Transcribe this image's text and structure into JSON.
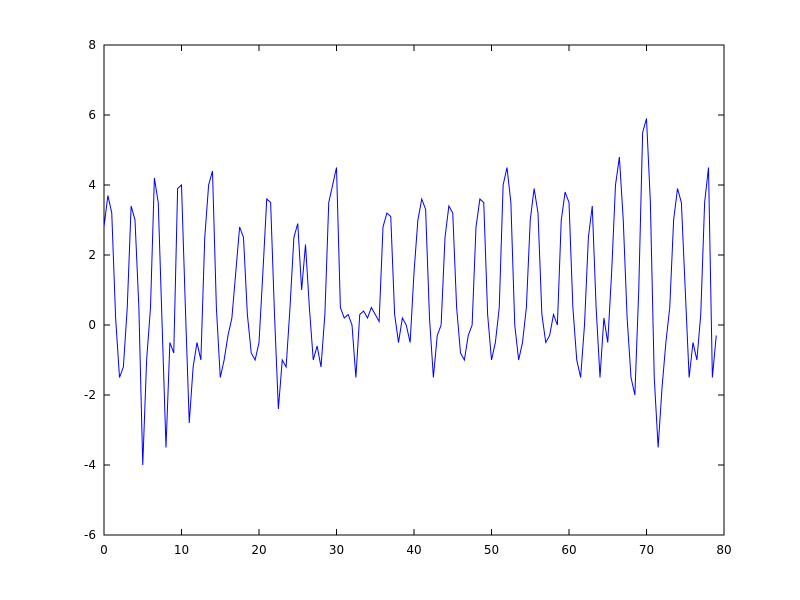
{
  "chart_data": {
    "type": "line",
    "color": "#0000ff",
    "x": [
      0,
      0.5,
      1,
      1.5,
      2,
      2.5,
      3,
      3.5,
      4,
      4.5,
      5,
      5.5,
      6,
      6.5,
      7,
      7.5,
      8,
      8.5,
      9,
      9.5,
      10,
      10.5,
      11,
      11.5,
      12,
      12.5,
      13,
      13.5,
      14,
      14.5,
      15,
      15.5,
      16,
      16.5,
      17,
      17.5,
      18,
      18.5,
      19,
      19.5,
      20,
      20.5,
      21,
      21.5,
      22,
      22.5,
      23,
      23.5,
      24,
      24.5,
      25,
      25.5,
      26,
      26.5,
      27,
      27.5,
      28,
      28.5,
      29,
      29.5,
      30,
      30.5,
      31,
      31.5,
      32,
      32.5,
      33,
      33.5,
      34,
      34.5,
      35,
      35.5,
      36,
      36.5,
      37,
      37.5,
      38,
      38.5,
      39,
      39.5,
      40,
      40.5,
      41,
      41.5,
      42,
      42.5,
      43,
      43.5,
      44,
      44.5,
      45,
      45.5,
      46,
      46.5,
      47,
      47.5,
      48,
      48.5,
      49,
      49.5,
      50,
      50.5,
      51,
      51.5,
      52,
      52.5,
      53,
      53.5,
      54,
      54.5,
      55,
      55.5,
      56,
      56.5,
      57,
      57.5,
      58,
      58.5,
      59,
      59.5,
      60,
      60.5,
      61,
      61.5,
      62,
      62.5,
      63,
      63.5,
      64,
      64.5,
      65,
      65.5,
      66,
      66.5,
      67,
      67.5,
      68,
      68.5,
      69,
      69.5,
      70,
      70.5,
      71,
      71.5,
      72,
      72.5,
      73,
      73.5,
      74,
      74.5,
      75,
      75.5,
      76,
      76.5,
      77,
      77.5,
      78,
      78.5,
      79
    ],
    "values": [
      2.8,
      3.7,
      3.2,
      0.2,
      -1.5,
      -1.2,
      0.5,
      3.4,
      3.0,
      0.5,
      -4.0,
      -1.0,
      0.5,
      4.2,
      3.5,
      0,
      -3.5,
      -0.5,
      -0.8,
      3.9,
      4.0,
      0.5,
      -2.8,
      -1.2,
      -0.5,
      -1.0,
      2.5,
      4.0,
      4.4,
      0.5,
      -1.5,
      -1.0,
      -0.3,
      0.2,
      1.5,
      2.8,
      2.5,
      0.3,
      -0.8,
      -1.0,
      -0.5,
      1.5,
      3.6,
      3.5,
      0.3,
      -2.4,
      -1.0,
      -1.2,
      0.5,
      2.5,
      2.9,
      1.0,
      2.3,
      0.5,
      -1.0,
      -0.6,
      -1.2,
      0.3,
      3.5,
      4.0,
      4.5,
      0.5,
      0.2,
      0.3,
      0.0,
      -1.5,
      0.3,
      0.4,
      0.2,
      0.5,
      0.3,
      0.1,
      2.8,
      3.2,
      3.1,
      0.3,
      -0.5,
      0.2,
      0.0,
      -0.5,
      1.5,
      3.0,
      3.6,
      3.3,
      0.2,
      -1.5,
      -0.3,
      0.0,
      2.5,
      3.4,
      3.2,
      0.5,
      -0.8,
      -1.0,
      -0.3,
      0.0,
      2.8,
      3.6,
      3.5,
      0.3,
      -1.0,
      -0.5,
      0.5,
      4.0,
      4.5,
      3.5,
      0.0,
      -1.0,
      -0.5,
      0.5,
      3.0,
      3.9,
      3.2,
      0.3,
      -0.5,
      -0.3,
      0.3,
      0.0,
      3.0,
      3.8,
      3.5,
      0.5,
      -1.0,
      -1.5,
      0.0,
      2.5,
      3.4,
      0.5,
      -1.5,
      0.2,
      -0.5,
      1.5,
      4.0,
      4.8,
      3.0,
      0.2,
      -1.5,
      -2.0,
      1.0,
      5.5,
      5.9,
      3.5,
      -1.5,
      -3.5,
      -1.8,
      -0.5,
      0.5,
      3.0,
      3.9,
      3.5,
      1.0,
      -1.5,
      -0.5,
      -1.0,
      0.3,
      3.5,
      4.5,
      -1.5,
      -0.3
    ],
    "xlim": [
      0,
      80
    ],
    "xticks": [
      0,
      10,
      20,
      30,
      40,
      50,
      60,
      70,
      80
    ],
    "ylim": [
      -6,
      8
    ],
    "yticks": [
      -6,
      -4,
      -2,
      0,
      2,
      4,
      6,
      8
    ]
  }
}
